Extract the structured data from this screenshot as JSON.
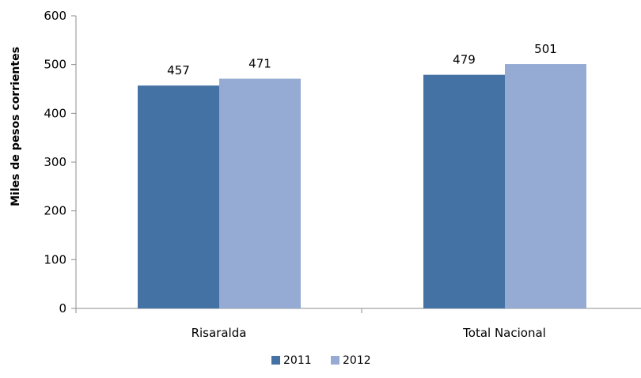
{
  "chart_data": {
    "type": "bar",
    "title": "",
    "xlabel": "",
    "ylabel": "Miles de pesos corrientes",
    "ylim": [
      0,
      600
    ],
    "yticks": [
      0,
      100,
      200,
      300,
      400,
      500,
      600
    ],
    "ytick_labels": [
      "0",
      "100",
      "200",
      "300",
      "400",
      "500",
      "600"
    ],
    "categories": [
      "Risaralda",
      "Total Nacional"
    ],
    "series": [
      {
        "name": "2011",
        "values": [
          457,
          479
        ],
        "color": "#4472a4"
      },
      {
        "name": "2012",
        "values": [
          471,
          501
        ],
        "color": "#95abd3"
      }
    ],
    "data_labels": [
      [
        "457",
        "479"
      ],
      [
        "471",
        "501"
      ]
    ],
    "grid": false,
    "legend_position": "bottom"
  }
}
